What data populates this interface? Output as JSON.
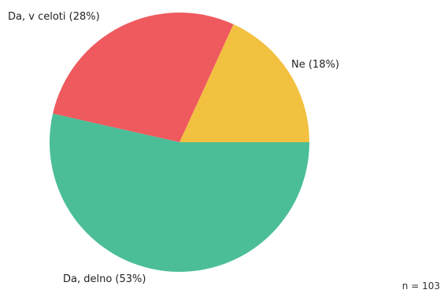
{
  "chart_data": {
    "type": "pie",
    "title": "",
    "slices": [
      {
        "label": "Ne (18%)",
        "value": 18,
        "color": "#F2C140"
      },
      {
        "label": "Da, v celoti (28%)",
        "value": 28,
        "color": "#EE5A5E"
      },
      {
        "label": "Da, delno (53%)",
        "value": 53,
        "color": "#4BBE98"
      }
    ],
    "start": "3 o'clock",
    "direction": "counterclockwise",
    "legend": "none",
    "note": "n = 103"
  }
}
